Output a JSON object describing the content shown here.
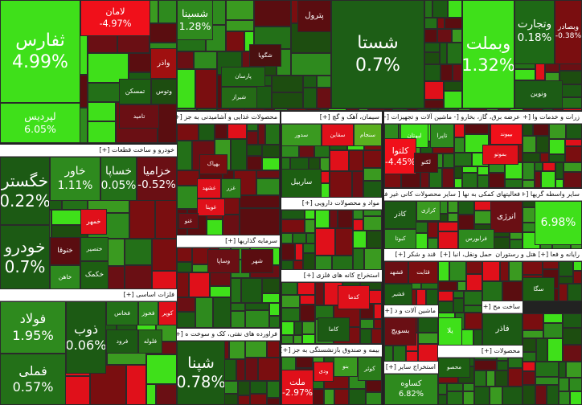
{
  "sectors": [
    {
      "tiles": [
        {
          "name": "ثفارس",
          "change": "4.99%"
        },
        {
          "name": "لپردیس",
          "change": "6.05%"
        },
        {
          "name": "لامان",
          "change": "-4.97%"
        },
        {
          "name": "واذر"
        },
        {
          "name": "تمسکن"
        },
        {
          "name": "وتوس"
        },
        {
          "name": "تامید"
        }
      ]
    },
    {
      "tiles": [
        {
          "name": "شسینا",
          "change": "1.28%"
        },
        {
          "name": "پترول"
        },
        {
          "name": "شگویا"
        },
        {
          "name": "پارسان"
        },
        {
          "name": "شیراز"
        }
      ]
    },
    {
      "tiles": [
        {
          "name": "شستا",
          "change": "0.7%"
        }
      ]
    },
    {
      "tiles": [
        {
          "name": "وبملت",
          "change": "1.32%"
        },
        {
          "name": "وتجارت",
          "change": "0.18%"
        },
        {
          "name": "وبصادر",
          "change": "-0.38%"
        },
        {
          "name": "ونوین"
        }
      ]
    },
    {
      "title": "خودرو و ساخت قطعات [+]",
      "tiles": [
        {
          "name": "خگستر",
          "change": "0.22%"
        },
        {
          "name": "خودرو",
          "change": "0.7%"
        },
        {
          "name": "خاور",
          "change": "1.11%"
        },
        {
          "name": "خساپا",
          "change": "0.05%"
        },
        {
          "name": "خزامیا",
          "change": "-0.52%"
        },
        {
          "name": "ختوقا"
        },
        {
          "name": "خمهر"
        },
        {
          "name": "ختصیر"
        },
        {
          "name": "خکمک"
        },
        {
          "name": "خاهن"
        }
      ]
    },
    {
      "title": "فلزات اساسی [+]",
      "tiles": [
        {
          "name": "فولاد",
          "change": "1.95%"
        },
        {
          "name": "فملی",
          "change": "0.57%"
        },
        {
          "name": "ذوب",
          "change": "0.06%"
        },
        {
          "name": "فخاس"
        },
        {
          "name": "فخوز"
        },
        {
          "name": "کویر"
        },
        {
          "name": "فرود"
        },
        {
          "name": "فلوله"
        }
      ]
    },
    {
      "title": "محصولات غذایی و آشامیدنی به جز [+]",
      "tiles": [
        {
          "name": "بهپاک"
        },
        {
          "name": "غشهد"
        },
        {
          "name": "غزر"
        },
        {
          "name": "غویتا"
        },
        {
          "name": "غنو"
        }
      ]
    },
    {
      "title": "سیمان، آهک و گچ [+]",
      "tiles": [
        {
          "name": "سقاین"
        },
        {
          "name": "سنجام"
        },
        {
          "name": "سدور"
        },
        {
          "name": "ساربیل"
        }
      ]
    },
    {
      "title": "مواد و محصولات دارویی [+]"
    },
    {
      "title": "ماشین آلات و تجهیزات [+]",
      "tiles": [
        {
          "name": "لبوتان"
        },
        {
          "name": "تایرا"
        },
        {
          "name": "کلتوا",
          "change": "-4.45%"
        },
        {
          "name": "لکتو"
        }
      ]
    },
    {
      "title": "عرضه برق، گاز، بخارو [+]",
      "tiles": [
        {
          "name": "بپیوند"
        },
        {
          "name": "بموتو"
        }
      ]
    },
    {
      "title": "سایر محصولات کانی غیر فل [+]",
      "tiles": [
        {
          "name": "کاذر"
        },
        {
          "name": "کرازی"
        },
        {
          "name": "کبوتا"
        }
      ]
    },
    {
      "title": "فعالیتهای کمکی به نها [+]",
      "tiles": [
        {
          "name": "انرژی"
        },
        {
          "name": "فرابورس"
        }
      ]
    },
    {
      "title": "سایر واسطه گریها [+]",
      "tiles": [
        {
          "change": "6.98%"
        }
      ]
    },
    {
      "title": "سرمایه گذاریها [+]",
      "tiles": [
        {
          "name": "وساپا"
        },
        {
          "name": "شهر"
        }
      ]
    },
    {
      "title": "استخراج کانه های فلزی [+]",
      "tiles": [
        {
          "name": "کدما"
        },
        {
          "name": "کاما"
        }
      ]
    },
    {
      "title": "فراورده های نفتی، کک و سوخت ه [+]",
      "tiles": [
        {
          "name": "شپنا",
          "change": "0.78%"
        }
      ]
    },
    {
      "title": "بیمه و صندوق بازنشستگی به جز [+]",
      "tiles": [
        {
          "name": "کوثر"
        },
        {
          "name": "بنو"
        },
        {
          "name": "ودی"
        },
        {
          "name": "ملت",
          "change": "-2.97%"
        }
      ]
    },
    {
      "title": "قند و شکر [+]",
      "tiles": [
        {
          "name": "قثابت"
        },
        {
          "name": "قشهد"
        },
        {
          "name": "قشیر"
        }
      ]
    },
    {
      "title": "ماشین آلات و د [+]",
      "tiles": [
        {
          "name": "بسویچ"
        }
      ]
    },
    {
      "title": "استخراج سایر [+]",
      "tiles": [
        {
          "name": "کساوه",
          "change": "6.82%"
        }
      ]
    },
    {
      "title": "حمل ونقل، انبا [+]",
      "tiles": [
        {
          "name": "یلا"
        }
      ]
    },
    {
      "title": "هتل و رستوران [+]"
    },
    {
      "title": "رایانه و فعا [+]",
      "tiles": [
        {
          "name": "سگا"
        }
      ]
    },
    {
      "title": "زرات و خدمات وا [+]"
    },
    {
      "title": "ساخت مح [+]",
      "tiles": [
        {
          "name": "فاذر"
        }
      ]
    },
    {
      "title": "محصولات [+]",
      "tiles": [
        {
          "name": "محصو"
        }
      ]
    }
  ]
}
